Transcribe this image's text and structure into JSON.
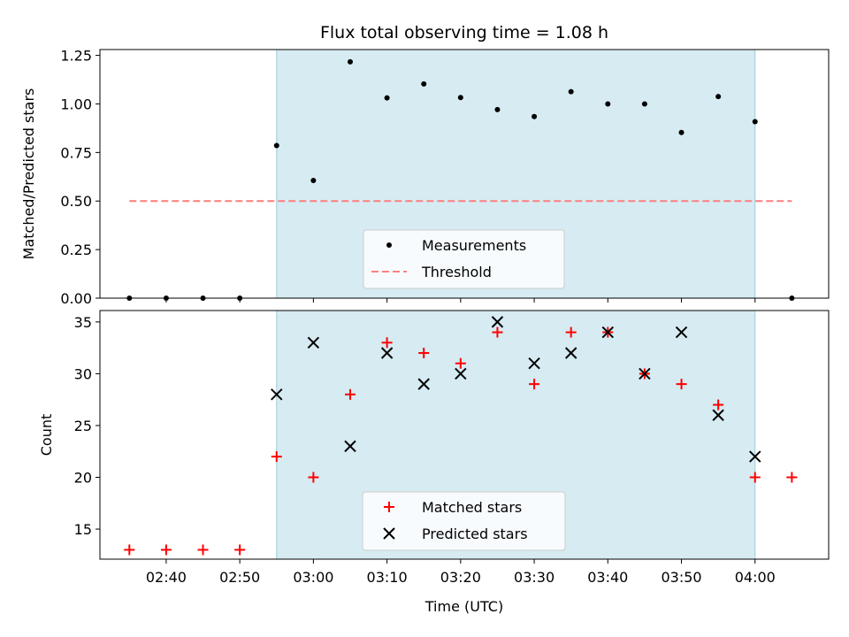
{
  "chart_data": [
    {
      "id": "ratio",
      "type": "scatter",
      "title": "Flux total observing time = 1.08 h",
      "xlabel": "",
      "ylabel": "Matched/Predicted stars",
      "ylim": [
        0,
        1.28
      ],
      "yticks": [
        0.0,
        0.25,
        0.5,
        0.75,
        1.0,
        1.25
      ],
      "ytick_labels": [
        "0.00",
        "0.25",
        "0.50",
        "0.75",
        "1.00",
        "1.25"
      ],
      "shaded_interval": [
        "02:55",
        "04:00"
      ],
      "shade_color": "#add8e6",
      "series": [
        {
          "name": "Measurements",
          "marker": "dot",
          "color": "#000000",
          "x": [
            "02:35",
            "02:40",
            "02:45",
            "02:50",
            "02:55",
            "03:00",
            "03:05",
            "03:10",
            "03:15",
            "03:20",
            "03:25",
            "03:30",
            "03:35",
            "03:40",
            "03:45",
            "03:50",
            "03:55",
            "04:00",
            "04:05"
          ],
          "y": [
            0.0,
            0.0,
            0.0,
            0.0,
            0.786,
            0.606,
            1.217,
            1.031,
            1.103,
            1.033,
            0.971,
            0.935,
            1.063,
            1.0,
            1.0,
            0.853,
            1.038,
            0.909,
            0.0
          ]
        },
        {
          "name": "Threshold",
          "marker": "dashed-line",
          "color": "#ff7f7f",
          "x": [
            "02:35",
            "04:05"
          ],
          "y": [
            0.5,
            0.5
          ]
        }
      ],
      "legend": "lower-center"
    },
    {
      "id": "counts",
      "type": "scatter",
      "xlabel": "Time (UTC)",
      "ylabel": "Count",
      "ylim": [
        12.1,
        36.1
      ],
      "yticks": [
        15,
        20,
        25,
        30,
        35
      ],
      "ytick_labels": [
        "15",
        "20",
        "25",
        "30",
        "35"
      ],
      "xlim": [
        "02:31",
        "04:10"
      ],
      "xticks": [
        "02:40",
        "02:50",
        "03:00",
        "03:10",
        "03:20",
        "03:30",
        "03:40",
        "03:50",
        "04:00"
      ],
      "shaded_interval": [
        "02:55",
        "04:00"
      ],
      "shade_color": "#add8e6",
      "series": [
        {
          "name": "Matched stars",
          "marker": "plus",
          "color": "#ff0000",
          "x": [
            "02:35",
            "02:40",
            "02:45",
            "02:50",
            "02:55",
            "03:00",
            "03:05",
            "03:10",
            "03:15",
            "03:20",
            "03:25",
            "03:30",
            "03:35",
            "03:40",
            "03:45",
            "03:50",
            "03:55",
            "04:00",
            "04:05"
          ],
          "y": [
            13,
            13,
            13,
            13,
            22,
            20,
            28,
            33,
            32,
            31,
            34,
            29,
            34,
            34,
            30,
            29,
            27,
            20,
            20
          ]
        },
        {
          "name": "Predicted stars",
          "marker": "x",
          "color": "#000000",
          "x": [
            "02:55",
            "03:00",
            "03:05",
            "03:10",
            "03:15",
            "03:20",
            "03:25",
            "03:30",
            "03:35",
            "03:40",
            "03:45",
            "03:50",
            "03:55",
            "04:00"
          ],
          "y": [
            28,
            33,
            23,
            32,
            29,
            30,
            35,
            31,
            32,
            34,
            30,
            34,
            26,
            22
          ]
        }
      ],
      "legend": "lower-center"
    }
  ]
}
